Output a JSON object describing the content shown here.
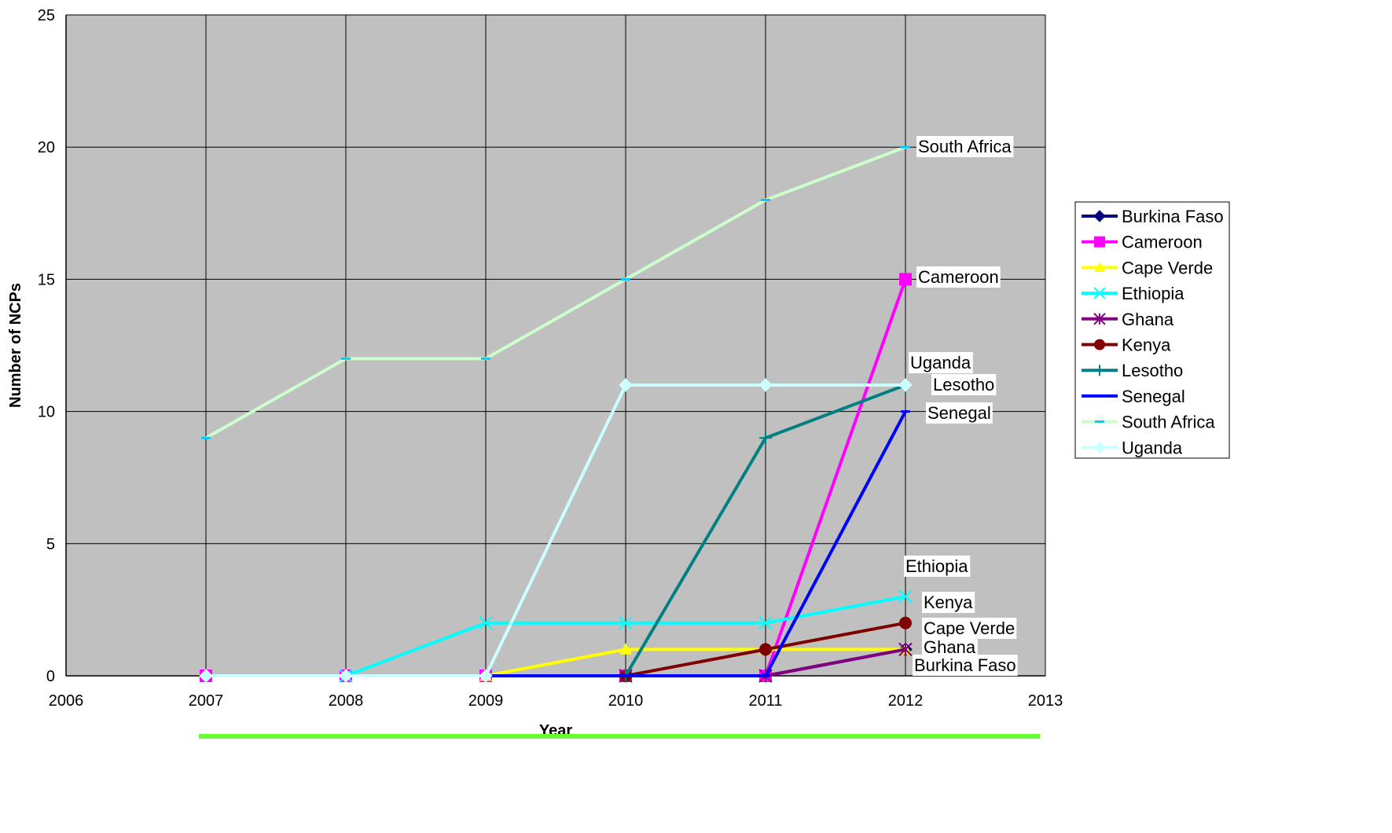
{
  "chart_data": {
    "type": "line",
    "xlabel": "Year",
    "ylabel": "Number of NCPs",
    "xlim": [
      2006,
      2013
    ],
    "ylim": [
      0,
      25
    ],
    "x_ticks": [
      "2006",
      "2007",
      "2008",
      "2009",
      "2010",
      "2011",
      "2012",
      "2013"
    ],
    "y_ticks": [
      "0",
      "5",
      "10",
      "15",
      "20",
      "25"
    ],
    "grid": true,
    "plot_background": "#c0c0c0",
    "legend_position": "right",
    "series": [
      {
        "name": "Burkina Faso",
        "color": "#000080",
        "marker": "diamond",
        "points": [
          [
            2010,
            0
          ],
          [
            2011,
            0
          ],
          [
            2012,
            1
          ]
        ],
        "end_label": "Burkina Faso"
      },
      {
        "name": "Cameroon",
        "color": "#ff00ff",
        "marker": "square",
        "points": [
          [
            2007,
            0
          ],
          [
            2008,
            0
          ],
          [
            2009,
            0
          ],
          [
            2010,
            0
          ],
          [
            2011,
            0
          ],
          [
            2012,
            15
          ]
        ],
        "end_label": "Cameroon"
      },
      {
        "name": "Cape Verde",
        "color": "#ffff00",
        "marker": "triangle",
        "points": [
          [
            2009,
            0
          ],
          [
            2010,
            1
          ],
          [
            2011,
            1
          ],
          [
            2012,
            1
          ]
        ],
        "end_label": "Cape Verde"
      },
      {
        "name": "Ethiopia",
        "color": "#00ffff",
        "marker": "x",
        "points": [
          [
            2008,
            0
          ],
          [
            2009,
            2
          ],
          [
            2010,
            2
          ],
          [
            2011,
            2
          ],
          [
            2012,
            3
          ]
        ],
        "end_label": "Ethiopia"
      },
      {
        "name": "Ghana",
        "color": "#800080",
        "marker": "star",
        "points": [
          [
            2010,
            0
          ],
          [
            2011,
            0
          ],
          [
            2012,
            1
          ]
        ],
        "end_label": "Ghana"
      },
      {
        "name": "Kenya",
        "color": "#800000",
        "marker": "circle",
        "points": [
          [
            2010,
            0
          ],
          [
            2011,
            1
          ],
          [
            2012,
            2
          ]
        ],
        "end_label": "Kenya"
      },
      {
        "name": "Lesotho",
        "color": "#008080",
        "marker": "plus",
        "points": [
          [
            2010,
            0
          ],
          [
            2011,
            9
          ],
          [
            2012,
            11
          ]
        ],
        "end_label": "Lesotho"
      },
      {
        "name": "Senegal",
        "color": "#0000ff",
        "marker": "dash",
        "points": [
          [
            2009,
            0
          ],
          [
            2010,
            0
          ],
          [
            2011,
            0
          ],
          [
            2012,
            10
          ]
        ],
        "end_label": "Senegal"
      },
      {
        "name": "South Africa",
        "color": "#ccffcc",
        "marker": "dash",
        "marker_color": "#00ccff",
        "points": [
          [
            2007,
            9
          ],
          [
            2008,
            12
          ],
          [
            2009,
            12
          ],
          [
            2010,
            15
          ],
          [
            2011,
            18
          ],
          [
            2012,
            20
          ]
        ],
        "end_label": "South Africa"
      },
      {
        "name": "Uganda",
        "color": "#ccffff",
        "marker": "diamond",
        "points": [
          [
            2007,
            0
          ],
          [
            2008,
            0
          ],
          [
            2009,
            0
          ],
          [
            2010,
            11
          ],
          [
            2011,
            11
          ],
          [
            2012,
            11
          ]
        ],
        "end_label": "Uganda"
      }
    ]
  },
  "footer": {
    "bar_color": "#66ff33"
  }
}
